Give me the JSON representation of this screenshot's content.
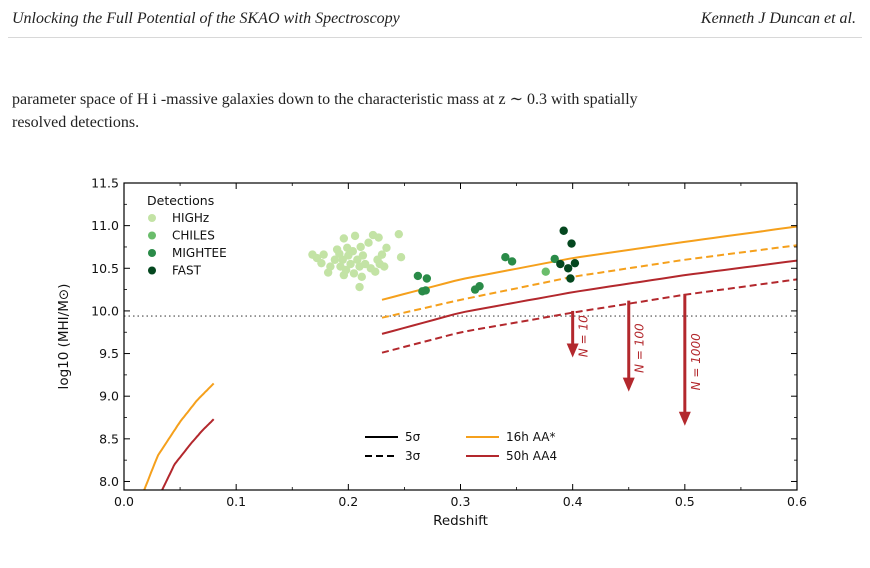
{
  "header": {
    "left_title": "Unlocking the Full Potential of the SKAO with Spectroscopy",
    "right_authors": "Kenneth J Duncan et al."
  },
  "paragraph": {
    "line1": "parameter space of H i -massive galaxies down to the characteristic mass at z ∼ 0.3 with spatially",
    "line2": "resolved detections."
  },
  "chart_data": {
    "type": "scatter",
    "xlabel": "Redshift",
    "ylabel": "log10 (MHI/M⊙)",
    "xlim": [
      0.0,
      0.6
    ],
    "ylim": [
      7.9,
      11.5
    ],
    "xticks": [
      "0.0",
      "0.1",
      "0.2",
      "0.3",
      "0.4",
      "0.5",
      "0.6"
    ],
    "yticks": [
      "8.0",
      "8.5",
      "9.0",
      "9.5",
      "10.0",
      "10.5",
      "11.0",
      "11.5"
    ],
    "reference_line": {
      "y": 9.94,
      "style": "dotted",
      "color": "#808080"
    },
    "legend_title": "Detections",
    "detections": [
      {
        "name": "HIGHz",
        "color": "#c3e3a5",
        "points": [
          [
            0.168,
            10.66
          ],
          [
            0.172,
            10.62
          ],
          [
            0.176,
            10.56
          ],
          [
            0.178,
            10.66
          ],
          [
            0.182,
            10.45
          ],
          [
            0.184,
            10.52
          ],
          [
            0.188,
            10.6
          ],
          [
            0.19,
            10.72
          ],
          [
            0.192,
            10.67
          ],
          [
            0.193,
            10.52
          ],
          [
            0.195,
            10.6
          ],
          [
            0.196,
            10.42
          ],
          [
            0.196,
            10.85
          ],
          [
            0.198,
            10.48
          ],
          [
            0.199,
            10.74
          ],
          [
            0.2,
            10.65
          ],
          [
            0.202,
            10.55
          ],
          [
            0.204,
            10.7
          ],
          [
            0.205,
            10.44
          ],
          [
            0.206,
            10.88
          ],
          [
            0.208,
            10.6
          ],
          [
            0.21,
            10.52
          ],
          [
            0.211,
            10.75
          ],
          [
            0.213,
            10.65
          ],
          [
            0.215,
            10.55
          ],
          [
            0.218,
            10.8
          ],
          [
            0.22,
            10.5
          ],
          [
            0.222,
            10.89
          ],
          [
            0.224,
            10.46
          ],
          [
            0.226,
            10.6
          ],
          [
            0.227,
            10.86
          ],
          [
            0.228,
            10.55
          ],
          [
            0.23,
            10.66
          ],
          [
            0.232,
            10.52
          ],
          [
            0.234,
            10.74
          ],
          [
            0.21,
            10.28
          ],
          [
            0.212,
            10.4
          ],
          [
            0.245,
            10.9
          ],
          [
            0.247,
            10.63
          ]
        ]
      },
      {
        "name": "CHILES",
        "color": "#6abd6b",
        "points": [
          [
            0.376,
            10.46
          ]
        ]
      },
      {
        "name": "MIGHTEE",
        "color": "#2a8b48",
        "points": [
          [
            0.262,
            10.41
          ],
          [
            0.266,
            10.23
          ],
          [
            0.269,
            10.24
          ],
          [
            0.27,
            10.38
          ],
          [
            0.313,
            10.25
          ],
          [
            0.317,
            10.29
          ],
          [
            0.34,
            10.63
          ],
          [
            0.346,
            10.58
          ],
          [
            0.384,
            10.61
          ]
        ]
      },
      {
        "name": "FAST",
        "color": "#04471f",
        "points": [
          [
            0.389,
            10.55
          ],
          [
            0.392,
            10.94
          ],
          [
            0.396,
            10.5
          ],
          [
            0.398,
            10.38
          ],
          [
            0.399,
            10.79
          ],
          [
            0.402,
            10.56
          ]
        ]
      }
    ],
    "series": [
      {
        "name": "16h AA*",
        "style": "solid",
        "color": "#f5a01c",
        "x": [
          0.23,
          0.3,
          0.4,
          0.5,
          0.6
        ],
        "y": [
          10.13,
          10.37,
          10.62,
          10.81,
          10.99
        ]
      },
      {
        "name": "16h AA*",
        "style": "dashed",
        "color": "#f5a01c",
        "x": [
          0.23,
          0.3,
          0.4,
          0.5,
          0.6
        ],
        "y": [
          9.92,
          10.13,
          10.4,
          10.6,
          10.77
        ]
      },
      {
        "name": "50h AA4",
        "style": "solid",
        "color": "#b3282d",
        "x": [
          0.23,
          0.3,
          0.4,
          0.5,
          0.6
        ],
        "y": [
          9.73,
          9.98,
          10.22,
          10.42,
          10.59
        ]
      },
      {
        "name": "50h AA4",
        "style": "dashed",
        "color": "#b3282d",
        "x": [
          0.23,
          0.3,
          0.4,
          0.5,
          0.6
        ],
        "y": [
          9.51,
          9.75,
          9.98,
          10.19,
          10.37
        ]
      },
      {
        "name": "16h AA*",
        "style": "solid",
        "color": "#f5a01c",
        "x": [
          0.018,
          0.03,
          0.05,
          0.065,
          0.08
        ],
        "y": [
          7.9,
          8.3,
          8.7,
          8.95,
          9.15
        ]
      },
      {
        "name": "50h AA4",
        "style": "solid",
        "color": "#b3282d",
        "x": [
          0.034,
          0.045,
          0.06,
          0.07,
          0.08
        ],
        "y": [
          7.9,
          8.2,
          8.45,
          8.6,
          8.73
        ]
      }
    ],
    "arrows": [
      {
        "x": 0.4,
        "y_from": 10.0,
        "y_to": 9.5,
        "label": "N = 10"
      },
      {
        "x": 0.45,
        "y_from": 10.12,
        "y_to": 9.1,
        "label": "N = 100"
      },
      {
        "x": 0.5,
        "y_from": 10.2,
        "y_to": 8.7,
        "label": "N = 1000"
      }
    ],
    "style_legend": [
      {
        "label": "5σ",
        "dash": "solid"
      },
      {
        "label": "3σ",
        "dash": "dashed"
      }
    ],
    "color_legend": [
      {
        "label": "16h AA*",
        "color": "#f5a01c"
      },
      {
        "label": "50h AA4",
        "color": "#b3282d"
      }
    ],
    "arrow_color": "#b3282d",
    "grid": false
  }
}
